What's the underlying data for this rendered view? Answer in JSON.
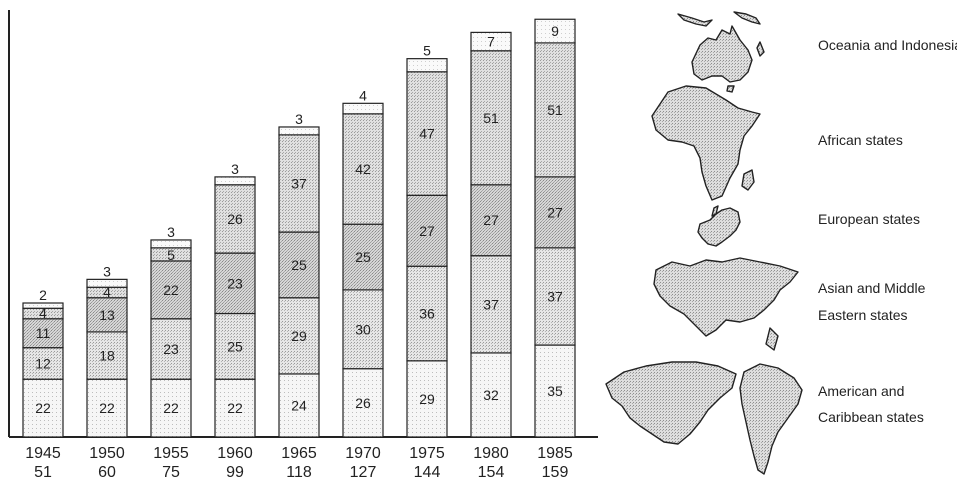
{
  "chart_data": {
    "type": "bar",
    "stacked": true,
    "categories": [
      "1945",
      "1950",
      "1955",
      "1960",
      "1965",
      "1970",
      "1975",
      "1980",
      "1985"
    ],
    "totals": [
      "51",
      "60",
      "75",
      "99",
      "118",
      "127",
      "144",
      "154",
      "159"
    ],
    "series": [
      {
        "name": "American and Caribbean states",
        "values": [
          22,
          22,
          22,
          22,
          24,
          26,
          29,
          32,
          35
        ]
      },
      {
        "name": "Asian and Middle Eastern states",
        "values": [
          12,
          18,
          23,
          25,
          29,
          30,
          36,
          37,
          37
        ]
      },
      {
        "name": "European states",
        "values": [
          11,
          13,
          22,
          23,
          25,
          25,
          27,
          27,
          27
        ]
      },
      {
        "name": "African states",
        "values": [
          4,
          4,
          5,
          26,
          37,
          42,
          47,
          51,
          51
        ]
      },
      {
        "name": "Oceania and Indonesia",
        "values": [
          2,
          3,
          3,
          3,
          3,
          4,
          5,
          7,
          9
        ]
      }
    ],
    "ylim": [
      0,
      161
    ],
    "grid": false,
    "legend_position": "right",
    "colors": [
      "#f4f4f4",
      "#e4e4e4",
      "#d3d3d3",
      "#dcdcdc",
      "#f8f8f8"
    ]
  },
  "legend": {
    "items": [
      {
        "line1": "Oceania and Indonesia",
        "line2": "",
        "icon": "oceania-map-icon"
      },
      {
        "line1": "African states",
        "line2": "",
        "icon": "africa-map-icon"
      },
      {
        "line1": "European states",
        "line2": "",
        "icon": "europe-map-icon"
      },
      {
        "line1": "Asian and Middle",
        "line2": "Eastern states",
        "icon": "asia-map-icon"
      },
      {
        "line1": "American and",
        "line2": "Caribbean states",
        "icon": "americas-map-icon"
      }
    ]
  }
}
